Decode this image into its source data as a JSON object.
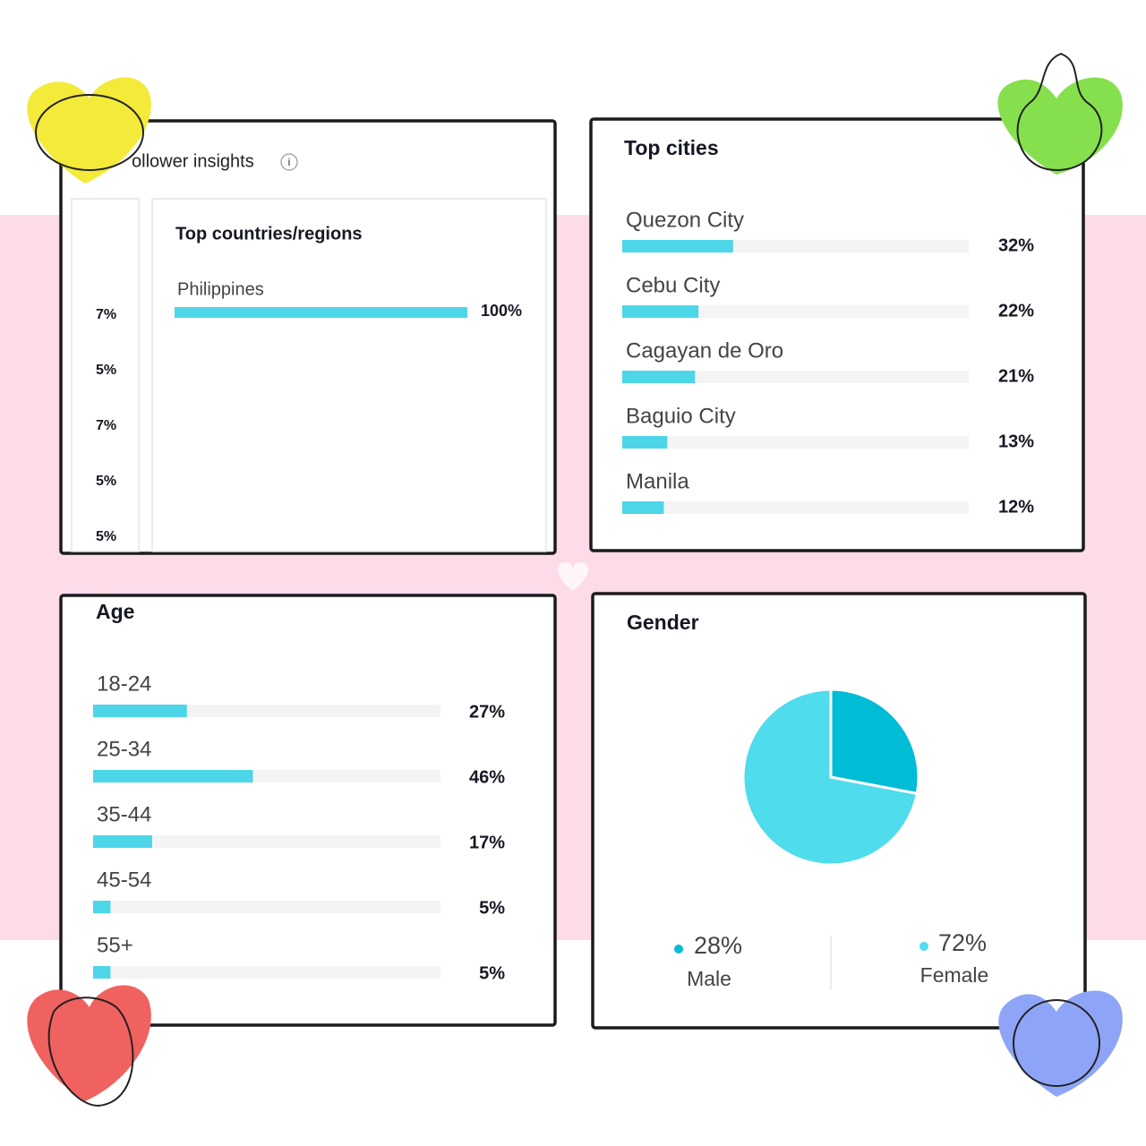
{
  "header": {
    "title": "ollower insights",
    "side_labels": [
      "7%",
      "5%",
      "7%",
      "5%",
      "5%"
    ]
  },
  "chart_data": [
    {
      "type": "hbar",
      "title": "Top countries/regions",
      "categories": [
        "Philippines"
      ],
      "values": [
        100
      ],
      "value_labels": [
        "100%"
      ],
      "color": "#4dd6e8",
      "xlim": [
        0,
        100
      ]
    },
    {
      "type": "hbar",
      "title": "Top cities",
      "categories": [
        "Quezon City",
        "Cebu City",
        "Cagayan de Oro",
        "Baguio City",
        "Manila"
      ],
      "values": [
        32,
        22,
        21,
        13,
        12
      ],
      "value_labels": [
        "32%",
        "22%",
        "21%",
        "13%",
        "12%"
      ],
      "color": "#4dd6e8",
      "xlim": [
        0,
        100
      ]
    },
    {
      "type": "hbar",
      "title": "Age",
      "categories": [
        "18-24",
        "25-34",
        "35-44",
        "45-54",
        "55+"
      ],
      "values": [
        27,
        46,
        17,
        5,
        5
      ],
      "value_labels": [
        "27%",
        "46%",
        "17%",
        "5%",
        "5%"
      ],
      "color": "#4dd6e8",
      "xlim": [
        0,
        100
      ]
    },
    {
      "type": "pie",
      "title": "Gender",
      "categories": [
        "Male",
        "Female"
      ],
      "values": [
        28,
        72
      ],
      "value_labels": [
        "28%",
        "72%"
      ],
      "colors": [
        "#00bcd4",
        "#4fdcec"
      ]
    }
  ]
}
